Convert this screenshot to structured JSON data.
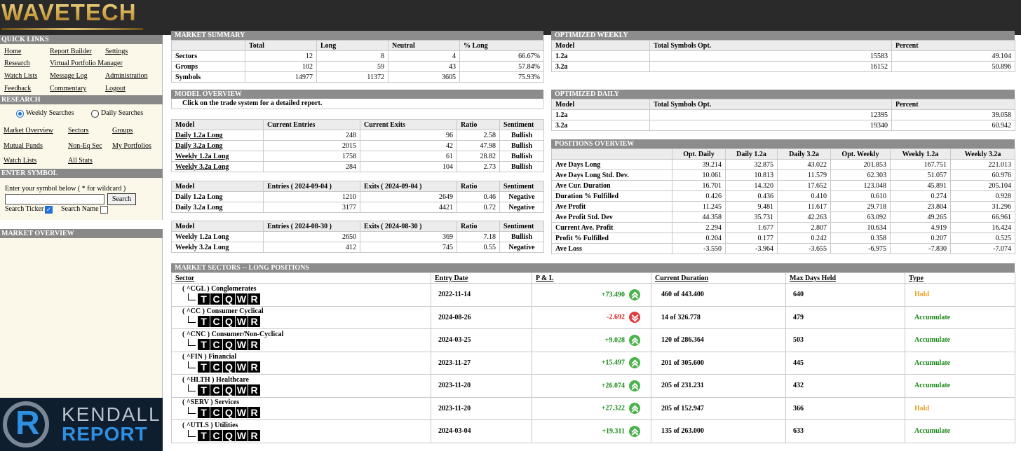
{
  "brand": {
    "logo_text": "WAVETECH"
  },
  "sidebar": {
    "quick_links_title": "QUICK LINKS",
    "quick_links": [
      "Home",
      "Report Builder",
      "Settings",
      "Research",
      "Virtual Portfolio Manager",
      "Watch Lists",
      "Message Log",
      "Administration",
      "Feedback",
      "Commentary",
      "Logout"
    ],
    "research_title": "RESEARCH",
    "radio_weekly": "Weekly Searches",
    "radio_daily": "Daily Searches",
    "research_links": [
      "Market Overview",
      "Sectors",
      "Groups",
      "Mutual Funds",
      "Non-Eq Sec",
      "My Portfolios",
      "Watch Lists",
      "All Stats"
    ],
    "enter_symbol_title": "ENTER SYMBOL",
    "enter_symbol_hint": "Enter your symbol below ( * for wildcard )",
    "symbol_value": "",
    "search_button": "Search",
    "search_ticker": "Search Ticker",
    "search_name": "Search Name",
    "market_overview_title": "MARKET OVERVIEW",
    "kendall_word1": "KENDALL",
    "kendall_word2": "REPORT",
    "kendall_letter": "R"
  },
  "market_summary": {
    "title": "MARKET SUMMARY",
    "headers": [
      "",
      "Total",
      "Long",
      "Neutral",
      "% Long"
    ],
    "rows": [
      [
        "Sectors",
        "12",
        "8",
        "4",
        "66.67%"
      ],
      [
        "Groups",
        "102",
        "59",
        "43",
        "57.84%"
      ],
      [
        "Symbols",
        "14977",
        "11372",
        "3605",
        "75.93%"
      ]
    ]
  },
  "optimized_weekly": {
    "title": "OPTIMIZED WEEKLY",
    "headers": [
      "Model",
      "Total Symbols Opt.",
      "Percent"
    ],
    "rows": [
      [
        "1.2a",
        "15583",
        "49.104"
      ],
      [
        "3.2a",
        "16152",
        "50.896"
      ]
    ]
  },
  "model_overview": {
    "title": "MODEL OVERVIEW",
    "note": "Click on the trade system for a detailed report.",
    "t1_headers": [
      "Model",
      "Current Entries",
      "Current Exits",
      "Ratio",
      "Sentiment"
    ],
    "t1_rows": [
      [
        "Daily 1.2a Long",
        "248",
        "96",
        "2.58",
        "Bullish"
      ],
      [
        "Daily 3.2a Long",
        "2015",
        "42",
        "47.98",
        "Bullish"
      ],
      [
        "Weekly 1.2a Long",
        "1758",
        "61",
        "28.82",
        "Bullish"
      ],
      [
        "Weekly 3.2a Long",
        "284",
        "104",
        "2.73",
        "Bullish"
      ]
    ],
    "t2_headers": [
      "Model",
      "Entries ( 2024-09-04 )",
      "Exits ( 2024-09-04 )",
      "Ratio",
      "Sentiment"
    ],
    "t2_rows": [
      [
        "Daily 1.2a Long",
        "1210",
        "2649",
        "0.46",
        "Negative"
      ],
      [
        "Daily 3.2a Long",
        "3177",
        "4421",
        "0.72",
        "Negative"
      ]
    ],
    "t3_headers": [
      "Model",
      "Entries ( 2024-08-30 )",
      "Exits ( 2024-08-30 )",
      "Ratio",
      "Sentiment"
    ],
    "t3_rows": [
      [
        "Weekly 1.2a Long",
        "2650",
        "369",
        "7.18",
        "Bullish"
      ],
      [
        "Weekly 3.2a Long",
        "412",
        "745",
        "0.55",
        "Negative"
      ]
    ]
  },
  "optimized_daily": {
    "title": "OPTIMIZED DAILY",
    "headers": [
      "Model",
      "Total Symbols Opt.",
      "Percent"
    ],
    "rows": [
      [
        "1.2a",
        "12395",
        "39.058"
      ],
      [
        "3.2a",
        "19340",
        "60.942"
      ]
    ]
  },
  "positions_overview": {
    "title": "POSITIONS OVERVIEW",
    "headers": [
      "",
      "Opt. Daily",
      "Daily 1.2a",
      "Daily 3.2a",
      "Opt. Weekly",
      "Weekly 1.2a",
      "Weekly 3.2a"
    ],
    "rows": [
      [
        "Ave Days Long",
        "39.214",
        "32.875",
        "43.022",
        "201.853",
        "167.751",
        "221.013"
      ],
      [
        "Ave Days Long Std. Dev.",
        "10.061",
        "10.813",
        "11.579",
        "62.303",
        "51.057",
        "60.976"
      ],
      [
        "Ave Cur. Duration",
        "16.701",
        "14.320",
        "17.652",
        "123.048",
        "45.891",
        "205.104"
      ],
      [
        "Duration % Fulfilled",
        "0.426",
        "0.436",
        "0.410",
        "0.610",
        "0.274",
        "0.928"
      ],
      [
        "Ave Profit",
        "11.245",
        "9.481",
        "11.617",
        "29.718",
        "23.804",
        "31.296"
      ],
      [
        "Ave Profit Std. Dev",
        "44.358",
        "35.731",
        "42.263",
        "63.092",
        "49.265",
        "66.961"
      ],
      [
        "Current Ave. Profit",
        "2.294",
        "1.677",
        "2.807",
        "10.634",
        "4.919",
        "16.424"
      ],
      [
        "Profit % Fulfilled",
        "0.204",
        "0.177",
        "0.242",
        "0.358",
        "0.207",
        "0.525"
      ],
      [
        "Ave Loss",
        "-3.550",
        "-3.964",
        "-3.655",
        "-6.975",
        "-7.830",
        "-7.074"
      ]
    ]
  },
  "market_sectors": {
    "title": "MARKET SECTORS -- LONG POSITIONS",
    "headers": [
      "Sector",
      "Entry Date",
      "P & L",
      "Current Duration",
      "Max Days Held",
      "Type"
    ],
    "tcqwr": [
      "T",
      "C",
      "Q",
      "W",
      "R"
    ],
    "rows": [
      {
        "sector": "( ^CGL ) Conglomerates",
        "entry": "2022-11-14",
        "pl": "+73.490",
        "dir": "up",
        "duration": "460 of 443.400",
        "max": "640",
        "type": "Hold"
      },
      {
        "sector": "( ^CC ) Consumer Cyclical",
        "entry": "2024-08-26",
        "pl": "-2.692",
        "dir": "down",
        "duration": "14 of 326.778",
        "max": "479",
        "type": "Accumulate"
      },
      {
        "sector": "( ^CNC ) Consumer/Non-Cyclical",
        "entry": "2024-03-25",
        "pl": "+9.028",
        "dir": "up",
        "duration": "120 of 286.364",
        "max": "503",
        "type": "Accumulate"
      },
      {
        "sector": "( ^FIN ) Financial",
        "entry": "2023-11-27",
        "pl": "+15.497",
        "dir": "up",
        "duration": "201 of 305.600",
        "max": "445",
        "type": "Accumulate"
      },
      {
        "sector": "( ^HLTH ) Healthcare",
        "entry": "2023-11-20",
        "pl": "+26.074",
        "dir": "up",
        "duration": "205 of 231.231",
        "max": "432",
        "type": "Accumulate"
      },
      {
        "sector": "( ^SERV ) Services",
        "entry": "2023-11-20",
        "pl": "+27.322",
        "dir": "up",
        "duration": "205 of 152.947",
        "max": "366",
        "type": "Hold"
      },
      {
        "sector": "( ^UTLS ) Utilities",
        "entry": "2024-03-04",
        "pl": "+19.311",
        "dir": "up",
        "duration": "135 of 263.000",
        "max": "633",
        "type": "Accumulate"
      }
    ]
  }
}
